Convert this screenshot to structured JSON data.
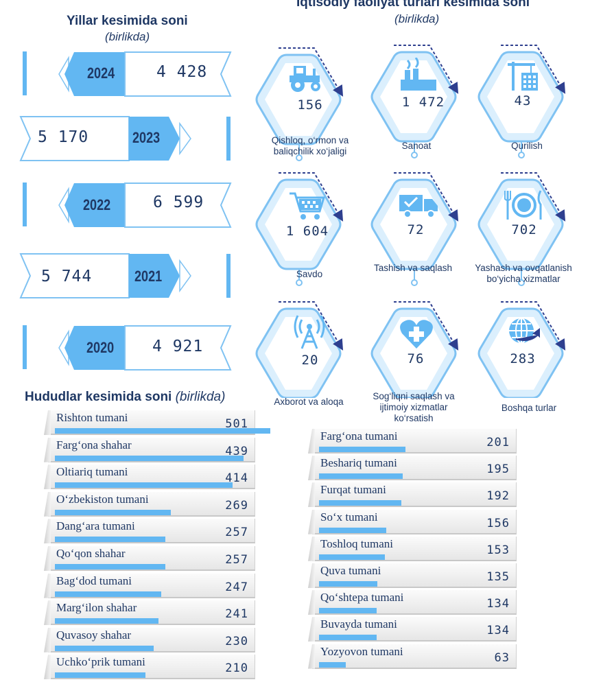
{
  "years_section": {
    "title": "Yillar kesimida soni",
    "unit": "(birlikda)",
    "items": [
      {
        "year": "2024",
        "value": "4 428"
      },
      {
        "year": "2023",
        "value": "5 170"
      },
      {
        "year": "2022",
        "value": "6 599"
      },
      {
        "year": "2021",
        "value": "5 744"
      },
      {
        "year": "2020",
        "value": "4 921"
      }
    ]
  },
  "activity_section": {
    "title": "Iqtisodiy faoliyat turlari kesimida soni",
    "unit": "(birlikda)",
    "items": [
      {
        "label": "Qishloq, o‘rmon va baliqchilik xo‘jaligi",
        "value": "156",
        "icon": "tractor-icon"
      },
      {
        "label": "Sanoat",
        "value": "1 472",
        "icon": "factory-icon"
      },
      {
        "label": "Qurilish",
        "value": "43",
        "icon": "crane-building-icon"
      },
      {
        "label": "Savdo",
        "value": "1 604",
        "icon": "shopping-cart-icon"
      },
      {
        "label": "Tashish va saqlash",
        "value": "72",
        "icon": "delivery-truck-icon"
      },
      {
        "label": "Yashash va ovqatlanish bo‘yicha xizmatlar",
        "value": "702",
        "icon": "plate-cutlery-icon"
      },
      {
        "label": "Axborot va aloqa",
        "value": "20",
        "icon": "antenna-tower-icon"
      },
      {
        "label": "Sog‘liqni saqlash va ijtimoiy xizmatlar ko‘rsatish",
        "value": "76",
        "icon": "health-heart-icon"
      },
      {
        "label": "Boshqa turlar",
        "value": "283",
        "icon": "globe-arrow-icon"
      }
    ]
  },
  "regions_section": {
    "title": "Hududlar kesimida soni",
    "unit": "(birlikda)"
  },
  "colors": {
    "navy": "#1f3864",
    "accent_blue": "#62b7f2",
    "light_blue": "#cde6fb",
    "hex_fill": "#dbeffd",
    "dash": "#2e3f8f"
  },
  "chart_data": [
    {
      "type": "bar",
      "title": "Yillar kesimida soni",
      "categories": [
        "2024",
        "2023",
        "2022",
        "2021",
        "2020"
      ],
      "values": [
        4428,
        5170,
        6599,
        5744,
        4921
      ]
    },
    {
      "type": "bar",
      "title": "Iqtisodiy faoliyat turlari kesimida soni",
      "categories": [
        "Qishloq, o‘rmon va baliqchilik xo‘jaligi",
        "Sanoat",
        "Qurilish",
        "Savdo",
        "Tashish va saqlash",
        "Yashash va ovqatlanish bo‘yicha xizmatlar",
        "Axborot va aloqa",
        "Sog‘liqni saqlash va ijtimoiy xizmatlar ko‘rsatish",
        "Boshqa turlar"
      ],
      "values": [
        156,
        1472,
        43,
        1604,
        72,
        702,
        20,
        76,
        283
      ]
    },
    {
      "type": "bar",
      "title": "Hududlar kesimida soni",
      "categories": [
        "Rishton tumani",
        "Farg‘ona shahar",
        "Oltiariq tumani",
        "O‘zbekiston tumani",
        "Dang‘ara tumani",
        "Qo‘qon shahar",
        "Bag‘dod tumani",
        "Marg‘ilon shahar",
        "Quvasoy shahar",
        "Uchko‘prik tumani",
        "Farg‘ona tumani",
        "Beshariq tumani",
        "Furqat tumani",
        "So‘x tumani",
        "Toshloq tumani",
        "Quva tumani",
        "Qo‘shtepa tumani",
        "Buvayda tumani",
        "Yozyovon tumani"
      ],
      "values": [
        501,
        439,
        414,
        269,
        257,
        257,
        247,
        241,
        230,
        210,
        201,
        195,
        192,
        156,
        153,
        135,
        134,
        134,
        63
      ],
      "max": 501
    }
  ]
}
